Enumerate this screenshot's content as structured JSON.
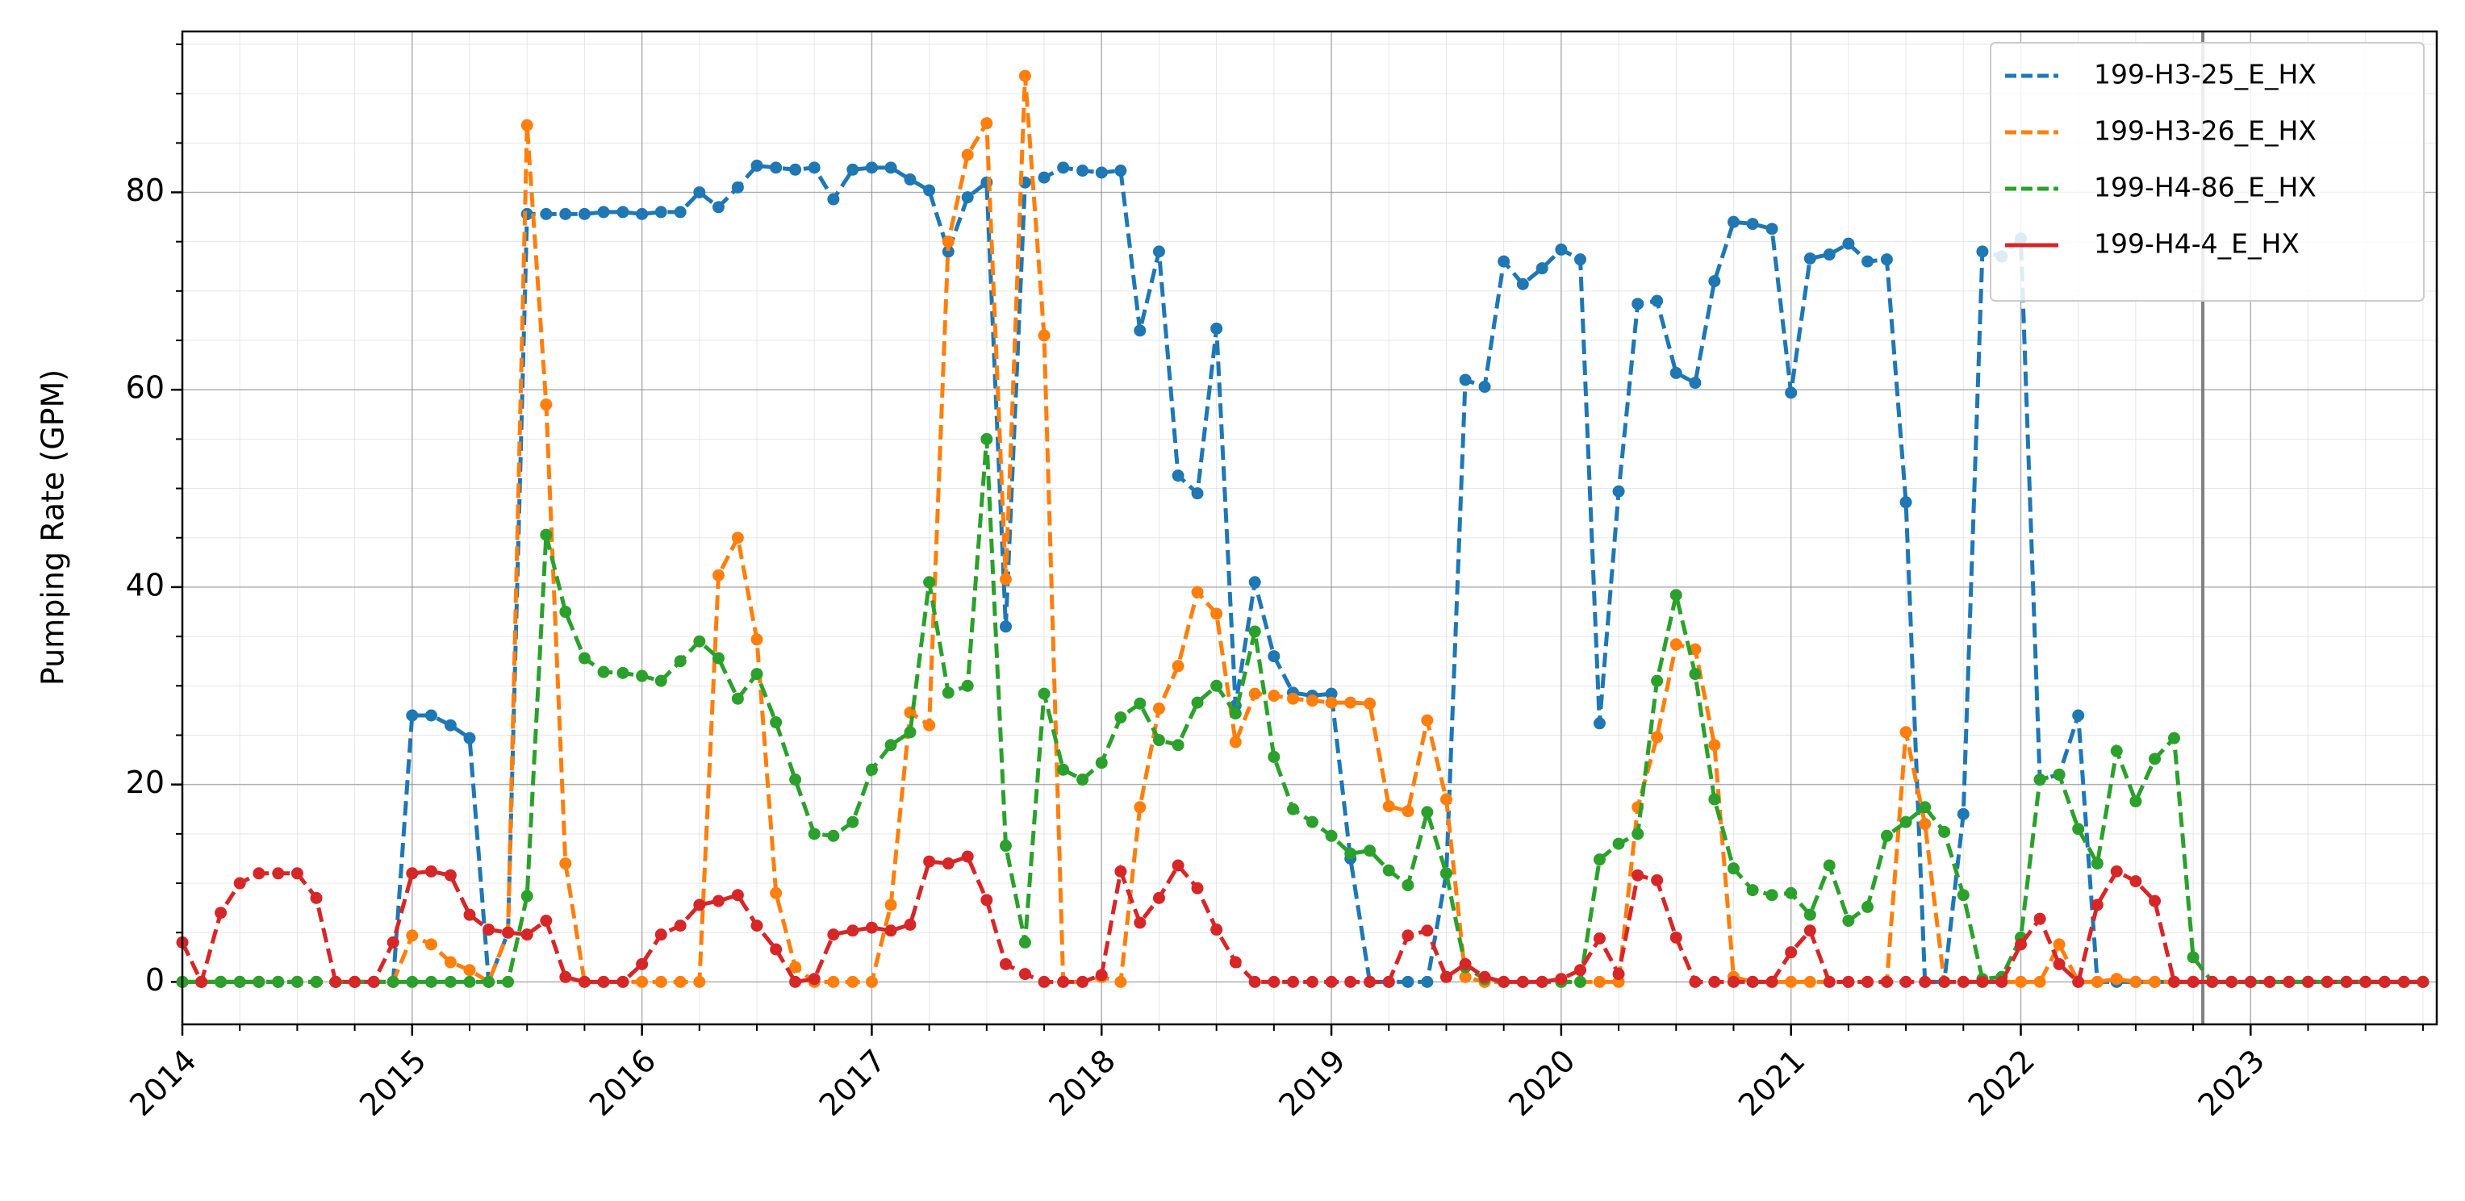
{
  "chart_data": {
    "type": "line",
    "ylabel": "Pumping Rate (GPM)",
    "x": [
      2014,
      2014.083,
      2014.167,
      2014.25,
      2014.333,
      2014.417,
      2014.5,
      2014.583,
      2014.667,
      2014.75,
      2014.833,
      2014.917,
      2015,
      2015.083,
      2015.167,
      2015.25,
      2015.333,
      2015.417,
      2015.5,
      2015.583,
      2015.667,
      2015.75,
      2015.833,
      2015.917,
      2016,
      2016.083,
      2016.167,
      2016.25,
      2016.333,
      2016.417,
      2016.5,
      2016.583,
      2016.667,
      2016.75,
      2016.833,
      2016.917,
      2017,
      2017.083,
      2017.167,
      2017.25,
      2017.333,
      2017.417,
      2017.5,
      2017.583,
      2017.667,
      2017.75,
      2017.833,
      2017.917,
      2018,
      2018.083,
      2018.167,
      2018.25,
      2018.333,
      2018.417,
      2018.5,
      2018.583,
      2018.667,
      2018.75,
      2018.833,
      2018.917,
      2019,
      2019.083,
      2019.167,
      2019.25,
      2019.333,
      2019.417,
      2019.5,
      2019.583,
      2019.667,
      2019.75,
      2019.833,
      2019.917,
      2020,
      2020.083,
      2020.167,
      2020.25,
      2020.333,
      2020.417,
      2020.5,
      2020.583,
      2020.667,
      2020.75,
      2020.833,
      2020.917,
      2021,
      2021.083,
      2021.167,
      2021.25,
      2021.333,
      2021.417,
      2021.5,
      2021.583,
      2021.667,
      2021.75,
      2021.833,
      2021.917,
      2022,
      2022.083,
      2022.167,
      2022.25,
      2022.333,
      2022.417,
      2022.5,
      2022.583,
      2022.667,
      2022.75,
      2022.833,
      2022.917,
      2023,
      2023.083,
      2023.167,
      2023.25,
      2023.333,
      2023.417,
      2023.5,
      2023.583,
      2023.667,
      2023.75
    ],
    "series": [
      {
        "name": "199-H3-25_E_HX",
        "color": "#1f77b4",
        "values": [
          0,
          0,
          0,
          0,
          0,
          0,
          0,
          0,
          0,
          0,
          0,
          0,
          27,
          27,
          26,
          24.7,
          0,
          5,
          77.8,
          77.8,
          77.8,
          77.8,
          78,
          78,
          77.8,
          78,
          78,
          80,
          78.5,
          80.5,
          82.7,
          82.5,
          82.3,
          82.5,
          79.3,
          82.3,
          82.5,
          82.5,
          81.3,
          80.2,
          74,
          79.5,
          81,
          36,
          81,
          81.5,
          82.5,
          82.2,
          82,
          82.2,
          66,
          74,
          51.3,
          49.5,
          66.2,
          28,
          40.5,
          33,
          29.3,
          29,
          29.2,
          12.5,
          0,
          0,
          0,
          0,
          11,
          61,
          60.3,
          73,
          70.7,
          72.3,
          74.2,
          73.2,
          26.2,
          49.7,
          68.7,
          69,
          61.7,
          60.7,
          71,
          77,
          76.8,
          76.3,
          59.7,
          73.3,
          73.7,
          74.8,
          73,
          73.2,
          48.6,
          0,
          0,
          17,
          74,
          73.5,
          75.3,
          20.5,
          21,
          27,
          0,
          0,
          0,
          0,
          0,
          0,
          0,
          0,
          0,
          0,
          0,
          0,
          0,
          0,
          0,
          0,
          0,
          0
        ]
      },
      {
        "name": "199-H3-26_E_HX",
        "color": "#ff7f0e",
        "values": [
          0,
          0,
          0,
          0,
          0,
          0,
          0,
          0,
          0,
          0,
          0,
          0,
          4.7,
          3.8,
          2,
          1.2,
          0,
          5,
          86.8,
          58.5,
          12,
          0,
          0,
          0,
          0,
          0,
          0,
          0,
          41.2,
          45,
          34.7,
          9,
          1.5,
          0,
          0,
          0,
          0,
          7.8,
          27.3,
          26,
          75,
          83.8,
          87,
          40.8,
          91.8,
          65.5,
          0,
          0,
          0.5,
          0,
          17.7,
          27.7,
          32,
          39.5,
          37.3,
          24.3,
          29.2,
          29,
          28.7,
          28.5,
          28.3,
          28.3,
          28.2,
          17.8,
          17.3,
          26.5,
          18.5,
          0.5,
          0,
          0,
          0,
          0,
          0,
          0,
          0,
          0,
          17.7,
          24.8,
          34.2,
          33.7,
          24,
          0.5,
          0,
          0,
          0,
          0,
          0,
          0,
          0,
          0,
          25.3,
          16,
          0,
          0,
          0,
          0,
          0,
          0,
          3.8,
          0,
          0,
          0.3,
          0,
          0,
          0,
          0,
          0,
          0,
          0,
          0,
          0,
          0,
          0,
          0,
          0,
          0,
          0,
          0
        ]
      },
      {
        "name": "199-H4-86_E_HX",
        "color": "#2ca02c",
        "values": [
          0,
          0,
          0,
          0,
          0,
          0,
          0,
          0,
          0,
          0,
          0,
          0,
          0,
          0,
          0,
          0,
          0,
          0,
          8.7,
          45.3,
          37.5,
          32.8,
          31.4,
          31.3,
          31,
          30.5,
          32.5,
          34.5,
          32.8,
          28.7,
          31.2,
          26.3,
          20.5,
          15,
          14.8,
          16.2,
          21.5,
          24,
          25.3,
          40.5,
          29.3,
          30,
          55,
          13.8,
          4,
          29.2,
          21.5,
          20.5,
          22.2,
          26.8,
          28.2,
          24.5,
          24,
          28.3,
          30,
          27.2,
          35.5,
          22.8,
          17.5,
          16.2,
          14.8,
          13,
          13.3,
          11.3,
          9.8,
          17.2,
          11,
          1.5,
          0.3,
          0,
          0,
          0,
          0,
          0,
          12.4,
          14,
          15,
          30.5,
          39.2,
          31.2,
          18.5,
          11.5,
          9.3,
          8.8,
          9,
          6.8,
          11.8,
          6.2,
          7.6,
          14.8,
          16.2,
          17.7,
          15.2,
          8.8,
          0.3,
          0.5,
          4.5,
          20.5,
          21,
          15.5,
          12,
          23.4,
          18.3,
          22.6,
          24.7,
          2.5,
          0,
          0,
          0,
          0,
          0,
          0,
          0,
          0,
          0,
          0,
          0,
          0
        ]
      },
      {
        "name": "199-H4-4_E_HX",
        "color": "#d62728",
        "values": [
          4,
          0,
          7,
          10,
          11,
          11,
          11,
          8.5,
          0,
          0,
          0,
          4,
          11,
          11.2,
          10.8,
          6.8,
          5.3,
          5,
          4.8,
          6.2,
          0.5,
          0,
          0,
          0,
          1.8,
          4.8,
          5.7,
          7.8,
          8.2,
          8.8,
          5.7,
          3.3,
          0,
          0.3,
          4.8,
          5.2,
          5.5,
          5.2,
          5.8,
          12.2,
          12,
          12.7,
          8.3,
          1.8,
          0.8,
          0,
          0,
          0,
          0.7,
          11.2,
          6,
          8.5,
          11.8,
          9.5,
          5.3,
          2,
          0,
          0,
          0,
          0,
          0,
          0,
          0,
          0,
          4.7,
          5.2,
          0.5,
          1.8,
          0.5,
          0,
          0,
          0,
          0.3,
          1.2,
          4.4,
          0.8,
          10.8,
          10.3,
          4.5,
          0,
          0,
          0,
          0,
          0,
          3,
          5.2,
          0,
          0,
          0,
          0,
          0,
          0,
          0,
          0,
          0,
          0,
          3.8,
          6.4,
          1.8,
          0,
          7.8,
          11.2,
          10.2,
          8.2,
          0,
          0,
          0,
          0,
          0,
          0,
          0,
          0,
          0,
          0,
          0,
          0,
          0,
          0
        ]
      }
    ],
    "xlim": [
      2014,
      2023.81
    ],
    "xticks": [
      2014,
      2015,
      2016,
      2017,
      2018,
      2019,
      2020,
      2021,
      2022,
      2023
    ],
    "ylim": [
      -4.3,
      96.3
    ],
    "yticks": [
      0,
      20,
      40,
      60,
      80
    ],
    "grid": true,
    "minor_grid": true,
    "legend": "upper right",
    "vline": 2022.792
  }
}
